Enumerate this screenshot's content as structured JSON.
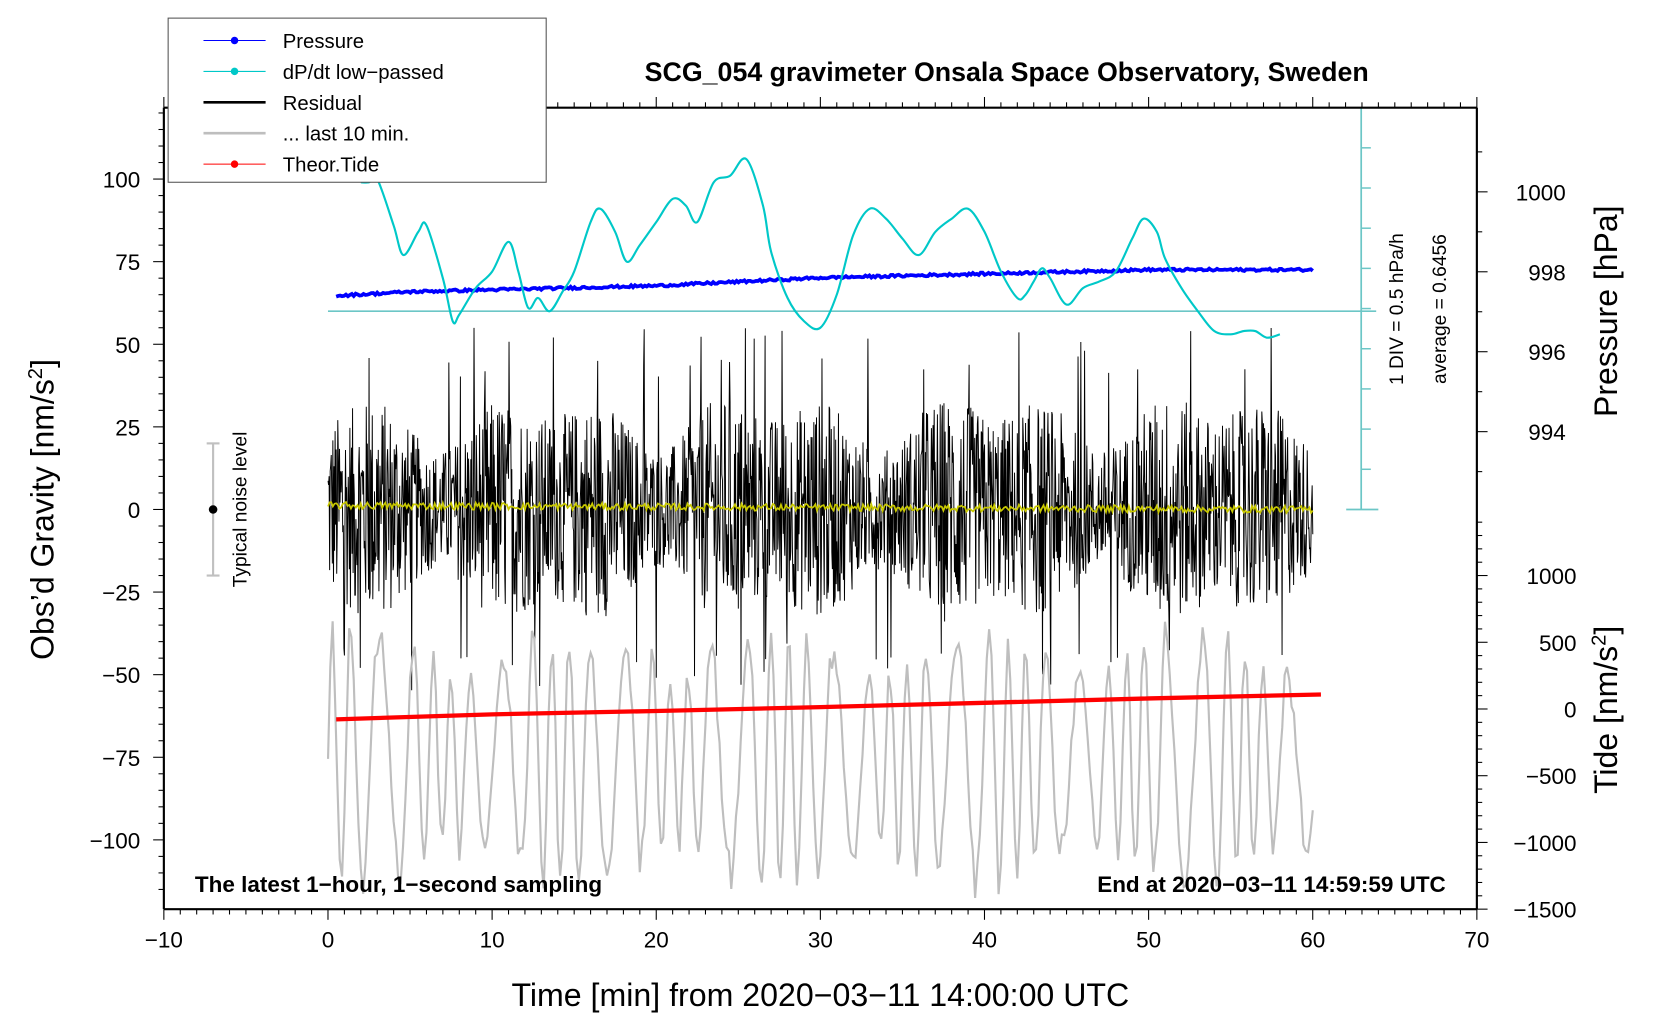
{
  "chart_data": {
    "type": "line",
    "title": "SCG_054 gravimeter Onsala Space Observatory, Sweden",
    "xlabel": "Time [min] from 2020−03−11 14:00:00 UTC",
    "ylabel_left": "Obs’d Gravity [nm/s²]",
    "ylabel_left_base": "Obs’d Gravity [nm/s",
    "ylabel_left_sup": "2",
    "ylabel_left_end": "]",
    "ylabel_right_top": "Pressure [hPa]",
    "ylabel_right_bottom_base": "Tide [nm/s",
    "ylabel_right_bottom_sup": "2",
    "ylabel_right_bottom_end": "]",
    "xlim": [
      -10,
      70
    ],
    "ylim_left": [
      -120,
      120
    ],
    "xticks": [
      -10,
      0,
      10,
      20,
      30,
      40,
      50,
      60,
      70
    ],
    "xtick_labels": [
      "−10",
      "0",
      "10",
      "20",
      "30",
      "40",
      "50",
      "60",
      "70"
    ],
    "yticks_left": [
      100,
      75,
      50,
      25,
      0,
      -25,
      -50,
      -75,
      -100
    ],
    "ytick_left_labels": [
      "100",
      "75",
      "50",
      "25",
      "0",
      "−25",
      "−50",
      "−75",
      "−100"
    ],
    "pressure_axis": {
      "ticks": [
        1000,
        998,
        996,
        994
      ],
      "labels": [
        "1000",
        "998",
        "996",
        "994"
      ],
      "range_approx": [
        992.5,
        1001.5
      ]
    },
    "tide_axis": {
      "ticks": [
        1000,
        500,
        0,
        -500,
        -1000,
        -1500
      ],
      "labels": [
        "1000",
        "500",
        "0",
        "−500",
        "−1000",
        "−1500"
      ],
      "range_approx": [
        -1500,
        1500
      ]
    },
    "grid": false,
    "legend": {
      "position": "top-left",
      "entries": [
        {
          "label": "Pressure",
          "color": "#0000ff",
          "style": "line-dot"
        },
        {
          "label": "dP/dt low−passed",
          "color": "#00c8c8",
          "style": "line-dot"
        },
        {
          "label": "Residual",
          "color": "#000000",
          "style": "line"
        },
        {
          "label": "... last 10 min.",
          "color": "#bebebe",
          "style": "line"
        },
        {
          "label": "Theor.Tide",
          "color": "#ff0000",
          "style": "line-dot"
        }
      ]
    },
    "annotations": {
      "bottom_left": "The latest 1−hour, 1−second sampling",
      "bottom_right": "End at 2020−03−11 14:59:59 UTC",
      "dpdt_scale": "1 DIV = 0.5 hPa/h",
      "dpdt_average": "average = 0.6456",
      "noise_label": "Typical noise level"
    },
    "noise_bar": {
      "x": -7,
      "center": 0,
      "half_range": 20
    },
    "series": [
      {
        "name": "Pressure",
        "color": "#0000ff",
        "axis": "pressure",
        "x": [
          0.5,
          5,
          10,
          15,
          20,
          25,
          30,
          35,
          40,
          45,
          50,
          55,
          60
        ],
        "y": [
          997.4,
          997.5,
          997.55,
          997.6,
          997.65,
          997.75,
          997.85,
          997.9,
          997.95,
          998.0,
          998.05,
          998.05,
          998.05
        ]
      },
      {
        "name": "dP/dt low-passed",
        "color": "#00c8c8",
        "axis": "left_gravity_units",
        "baseline_y": 60,
        "x": [
          2,
          2.5,
          3,
          4,
          4.6,
          5.5,
          6,
          7,
          7.6,
          8,
          9,
          10,
          11,
          11.6,
          12.2,
          12.8,
          13.5,
          14.3,
          15,
          16,
          16.6,
          17.5,
          18.2,
          19,
          20,
          21,
          21.8,
          22.5,
          23.5,
          24.5,
          25.5,
          26.5,
          27,
          28,
          29,
          30,
          31,
          32,
          33,
          34,
          35,
          36,
          37,
          38,
          39,
          40,
          41,
          42,
          42.5,
          43,
          43.5,
          44,
          45,
          46,
          47,
          48,
          49,
          49.7,
          50.5,
          51,
          52,
          53,
          54,
          55,
          55.8,
          56.5,
          57.2,
          58
        ],
        "y": [
          99,
          99,
          100,
          86,
          77,
          84,
          86,
          70,
          57,
          59,
          67,
          72,
          81,
          72,
          61,
          64,
          60,
          66,
          72,
          87,
          91,
          84,
          75,
          80,
          87,
          94,
          92,
          87,
          99,
          101,
          106,
          92,
          78,
          64,
          57,
          55,
          65,
          83,
          91,
          88,
          82,
          77,
          84,
          88,
          91,
          84,
          72,
          64,
          65,
          69,
          73,
          70,
          62,
          67,
          69,
          72,
          82,
          88,
          84,
          76,
          67,
          60,
          54,
          53,
          54,
          54,
          52,
          53
        ]
      },
      {
        "name": "Residual",
        "color": "#000000",
        "axis": "left",
        "x_range": [
          0,
          60
        ],
        "amplitude_approx": 35,
        "center": 0,
        "note": "1-second sampled noise, typical envelope ±35 nm/s² with spikes to ±55"
      },
      {
        "name": "Residual smoothed",
        "color": "#c8c800",
        "axis": "left",
        "x_range": [
          0,
          60
        ],
        "center": 0.5
      },
      {
        "name": "... last 10 min.",
        "color": "#bebebe",
        "axis": "left",
        "x_range": [
          0,
          60
        ],
        "center": -75,
        "amplitude_approx": 35
      },
      {
        "name": "Theor.Tide",
        "color": "#ff0000",
        "axis": "left_offset",
        "x": [
          0.5,
          10,
          20,
          30,
          40,
          50,
          60.5
        ],
        "y": [
          -63.5,
          -62,
          -61,
          -59.8,
          -58.5,
          -57.2,
          -56
        ]
      }
    ]
  }
}
